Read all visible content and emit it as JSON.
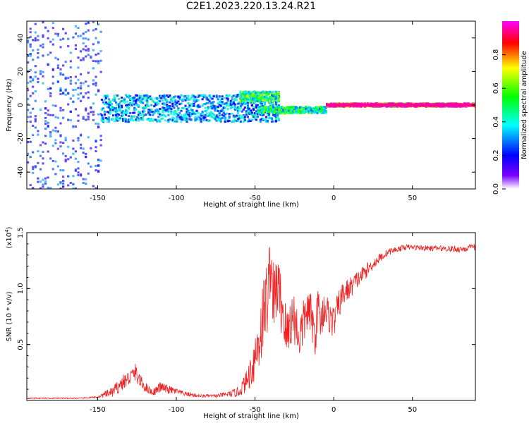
{
  "title": "C2E1.2023.220.13.24.R21",
  "chart_data": [
    {
      "type": "heatmap",
      "xlabel": "Height of straight line (km)",
      "ylabel": "Frequency (Hz)",
      "xlim": [
        -195,
        90
      ],
      "ylim": [
        -50,
        50
      ],
      "xticks": [
        -150,
        -100,
        -50,
        0,
        50
      ],
      "yticks": [
        -40,
        -20,
        0,
        20,
        40
      ],
      "xtick_labels": [
        "-150",
        "-100",
        "-50",
        "0",
        "50"
      ],
      "ytick_labels": [
        "-40",
        "-20",
        "0",
        "20",
        "40"
      ],
      "colorbar": {
        "label": "Normalized spectral amplitude",
        "range": [
          0,
          1
        ],
        "ticks": [
          0.0,
          0.2,
          0.4,
          0.6,
          0.8
        ],
        "tick_labels": [
          "0.0",
          "0.2",
          "0.4",
          "0.6",
          "0.8"
        ],
        "colors": [
          "#ffffff",
          "#7b00ff",
          "#0000ff",
          "#00ffff",
          "#00ff00",
          "#ffff00",
          "#ff0000",
          "#ff00ff"
        ]
      },
      "regions": [
        {
          "x": [
            -195,
            -148
          ],
          "y_center": 0,
          "y_halfwidth": 50,
          "amplitude": 0.25,
          "density": 0.55
        },
        {
          "x": [
            -148,
            -35
          ],
          "y_center": -2,
          "y_halfwidth": 8,
          "amplitude": 0.35,
          "density": 0.8
        },
        {
          "x": [
            -60,
            -35
          ],
          "y_center": 5,
          "y_halfwidth": 3,
          "amplitude": 0.55,
          "density": 0.8
        },
        {
          "x": [
            -48,
            -5
          ],
          "y_center": -3,
          "y_halfwidth": 2,
          "amplitude": 0.5,
          "density": 0.8
        },
        {
          "x": [
            -5,
            90
          ],
          "y_center": 0,
          "y_halfwidth": 1,
          "amplitude": 0.95,
          "density": 1.0
        }
      ]
    },
    {
      "type": "line",
      "xlabel": "Height of straight line (km)",
      "ylabel": "SNR (10 * v/v)",
      "y_multiplier": "(x10",
      "y_multiplier_exp": "4",
      "y_multiplier_close": ")",
      "xlim": [
        -195,
        90
      ],
      "ylim": [
        0,
        1.5
      ],
      "xticks": [
        -150,
        -100,
        -50,
        0,
        50
      ],
      "yticks": [
        0.5,
        1.0,
        1.5
      ],
      "xtick_labels": [
        "-150",
        "-100",
        "-50",
        "0",
        "50"
      ],
      "ytick_labels": [
        "0.5",
        "1.0",
        "1.5"
      ],
      "color": "#ee2222",
      "series": [
        {
          "x": [
            -195,
            -160,
            -150,
            -140,
            -135,
            -130,
            -126,
            -122,
            -118,
            -115,
            -110,
            -106,
            -100,
            -95,
            -90,
            -85,
            -80,
            -75,
            -70,
            -65,
            -60,
            -55,
            -52,
            -48,
            -45,
            -42,
            -40,
            -38,
            -36,
            -34,
            -32,
            -30,
            -28,
            -25,
            -22,
            -20,
            -17,
            -14,
            -12,
            -10,
            -8,
            -6,
            -3,
            0,
            3,
            6,
            10,
            15,
            20,
            25,
            30,
            35,
            40,
            45,
            50,
            60,
            70,
            80,
            90
          ],
          "y": [
            0.02,
            0.02,
            0.03,
            0.08,
            0.15,
            0.2,
            0.25,
            0.15,
            0.1,
            0.07,
            0.12,
            0.1,
            0.08,
            0.06,
            0.05,
            0.04,
            0.04,
            0.04,
            0.05,
            0.06,
            0.08,
            0.18,
            0.3,
            0.5,
            0.75,
            0.95,
            1.25,
            0.85,
            1.05,
            0.9,
            0.8,
            0.55,
            0.7,
            0.75,
            0.55,
            0.65,
            0.8,
            0.75,
            0.55,
            0.85,
            0.7,
            0.85,
            0.75,
            0.7,
            0.85,
            0.95,
            1.0,
            1.08,
            1.15,
            1.22,
            1.28,
            1.33,
            1.35,
            1.37,
            1.37,
            1.36,
            1.36,
            1.35,
            1.37
          ],
          "noise": [
            0.005,
            0.005,
            0.008,
            0.05,
            0.07,
            0.07,
            0.08,
            0.06,
            0.04,
            0.03,
            0.05,
            0.04,
            0.03,
            0.02,
            0.02,
            0.015,
            0.015,
            0.015,
            0.02,
            0.03,
            0.05,
            0.1,
            0.18,
            0.3,
            0.35,
            0.35,
            0.3,
            0.35,
            0.3,
            0.3,
            0.3,
            0.25,
            0.25,
            0.25,
            0.2,
            0.22,
            0.2,
            0.2,
            0.2,
            0.18,
            0.18,
            0.18,
            0.15,
            0.15,
            0.13,
            0.12,
            0.1,
            0.08,
            0.07,
            0.05,
            0.04,
            0.03,
            0.025,
            0.025,
            0.025,
            0.025,
            0.025,
            0.03,
            0.03
          ]
        }
      ]
    }
  ]
}
